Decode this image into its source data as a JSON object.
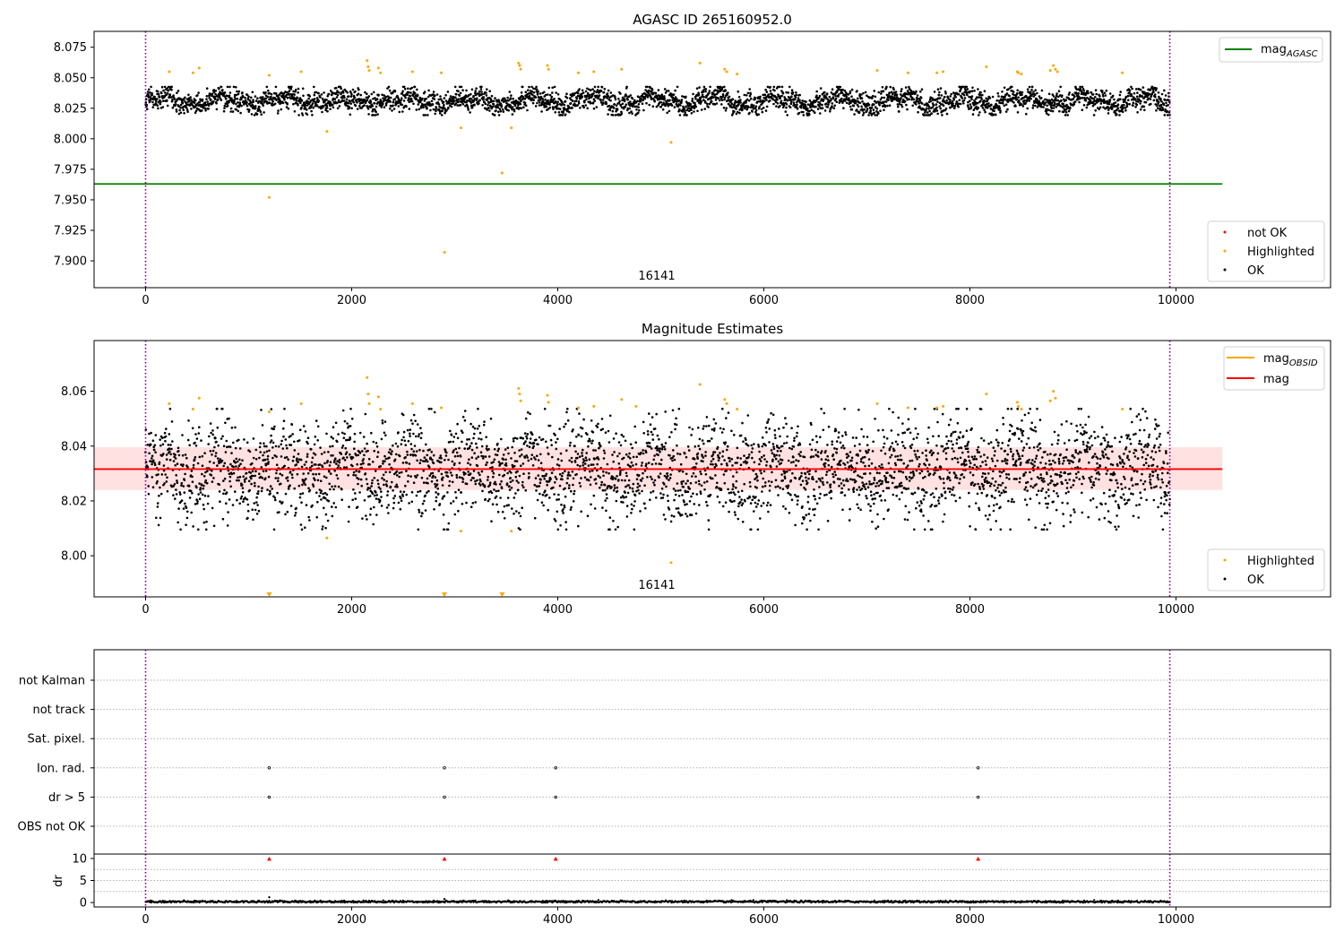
{
  "chart_data": [
    {
      "type": "scatter",
      "title": "AGASC ID 265160952.0",
      "xlim": [
        -500,
        11500
      ],
      "ylim": [
        7.878,
        8.088
      ],
      "x_ticks": [
        0,
        2000,
        4000,
        6000,
        8000,
        10000
      ],
      "y_ticks": [
        7.9,
        7.925,
        7.95,
        7.975,
        8.0,
        8.025,
        8.05,
        8.075
      ],
      "y_tick_labels": [
        "7.900",
        "7.925",
        "7.950",
        "7.975",
        "8.000",
        "8.025",
        "8.050",
        "8.075"
      ],
      "series": [
        {
          "name": "mag",
          "suffix": "AGASC",
          "type": "hline",
          "y": 7.963,
          "x_range": [
            -500,
            10450
          ],
          "color": "#008000"
        },
        {
          "name": "not OK",
          "type": "scatter",
          "color": "#ff0000",
          "points": []
        },
        {
          "name": "Highlighted",
          "type": "scatter",
          "color": "#ffa500",
          "points": [
            [
              230,
              8.055
            ],
            [
              460,
              8.054
            ],
            [
              520,
              8.058
            ],
            [
              1200,
              7.952
            ],
            [
              1200,
              8.052
            ],
            [
              1510,
              8.055
            ],
            [
              1760,
              8.006
            ],
            [
              2150,
              8.064
            ],
            [
              2160,
              8.059
            ],
            [
              2170,
              8.056
            ],
            [
              2260,
              8.058
            ],
            [
              2280,
              8.054
            ],
            [
              2590,
              8.055
            ],
            [
              2870,
              8.054
            ],
            [
              2900,
              7.907
            ],
            [
              3060,
              8.009
            ],
            [
              3460,
              7.972
            ],
            [
              3550,
              8.009
            ],
            [
              3620,
              8.062
            ],
            [
              3630,
              8.06
            ],
            [
              3640,
              8.057
            ],
            [
              3900,
              8.06
            ],
            [
              3910,
              8.057
            ],
            [
              4200,
              8.054
            ],
            [
              4350,
              8.055
            ],
            [
              4620,
              8.057
            ],
            [
              5100,
              7.997
            ],
            [
              5380,
              8.062
            ],
            [
              5620,
              8.057
            ],
            [
              5640,
              8.055
            ],
            [
              5740,
              8.053
            ],
            [
              7100,
              8.056
            ],
            [
              7400,
              8.054
            ],
            [
              7680,
              8.054
            ],
            [
              7740,
              8.055
            ],
            [
              8160,
              8.059
            ],
            [
              8460,
              8.055
            ],
            [
              8470,
              8.054
            ],
            [
              8500,
              8.053
            ],
            [
              8780,
              8.056
            ],
            [
              8810,
              8.06
            ],
            [
              8830,
              8.057
            ],
            [
              8850,
              8.055
            ],
            [
              9480,
              8.054
            ]
          ]
        },
        {
          "name": "OK",
          "type": "scatter",
          "color": "#000000",
          "x_range": [
            0,
            9940
          ],
          "y_center": 8.031,
          "y_spread": 0.021,
          "note_points": "dense band"
        }
      ],
      "vlines": [
        0,
        9940
      ],
      "annotation": "16141",
      "legend_upper": "upper right",
      "legend_lower": "lower right"
    },
    {
      "type": "scatter",
      "title": "Magnitude Estimates",
      "xlim": [
        -500,
        11500
      ],
      "ylim": [
        7.985,
        8.0785
      ],
      "x_ticks": [
        0,
        2000,
        4000,
        6000,
        8000,
        10000
      ],
      "y_ticks": [
        8.0,
        8.02,
        8.04,
        8.06
      ],
      "y_tick_labels": [
        "8.00",
        "8.02",
        "8.04",
        "8.06"
      ],
      "series": [
        {
          "name": "mag",
          "suffix": "OBSID",
          "type": "line",
          "color": "#ffa500"
        },
        {
          "name": "mag",
          "type": "hline",
          "y": 8.0316,
          "band": [
            8.024,
            8.0396
          ],
          "x_range": [
            -500,
            10450
          ],
          "color": "#ff0000"
        },
        {
          "name": "Highlighted",
          "type": "scatter",
          "color": "#ffa500",
          "points": [
            [
              230,
              8.0555
            ],
            [
              460,
              8.0535
            ],
            [
              520,
              8.0575
            ],
            [
              1200,
              8.0525
            ],
            [
              1510,
              8.0555
            ],
            [
              1760,
              8.0065
            ],
            [
              2150,
              8.065
            ],
            [
              2160,
              8.059
            ],
            [
              2170,
              8.0555
            ],
            [
              2260,
              8.058
            ],
            [
              2280,
              8.0535
            ],
            [
              2590,
              8.0555
            ],
            [
              2870,
              8.054
            ],
            [
              3060,
              8.009
            ],
            [
              3550,
              8.009
            ],
            [
              3620,
              8.061
            ],
            [
              3630,
              8.059
            ],
            [
              3640,
              8.0565
            ],
            [
              3900,
              8.0585
            ],
            [
              3910,
              8.056
            ],
            [
              4200,
              8.054
            ],
            [
              4350,
              8.0545
            ],
            [
              4620,
              8.057
            ],
            [
              4760,
              8.0545
            ],
            [
              5100,
              7.9975
            ],
            [
              5380,
              8.0625
            ],
            [
              5620,
              8.057
            ],
            [
              5640,
              8.0555
            ],
            [
              5740,
              8.0535
            ],
            [
              7100,
              8.0555
            ],
            [
              7400,
              8.054
            ],
            [
              7680,
              8.054
            ],
            [
              7740,
              8.0545
            ],
            [
              8160,
              8.059
            ],
            [
              8460,
              8.056
            ],
            [
              8470,
              8.0545
            ],
            [
              8500,
              8.0535
            ],
            [
              8780,
              8.0565
            ],
            [
              8810,
              8.06
            ],
            [
              8830,
              8.0575
            ],
            [
              9480,
              8.0535
            ]
          ]
        },
        {
          "name": "OK",
          "type": "scatter",
          "color": "#000000",
          "x_range": [
            0,
            9940
          ],
          "y_center": 8.0316,
          "y_spread": 0.04,
          "note_points": "dense band"
        }
      ],
      "clipped_markers": [
        1200,
        2900,
        3460
      ],
      "vlines": [
        0,
        9940
      ],
      "annotation": "16141",
      "legend_upper": "upper right",
      "legend_lower": "lower right"
    },
    {
      "type": "scatter",
      "title": "",
      "xlim": [
        -500,
        11500
      ],
      "categories": [
        "not Kalman",
        "not track",
        "Sat. pixel.",
        "Ion. rad.",
        "dr > 5",
        "OBS not OK"
      ],
      "flag_points": {
        "Ion. rad.": [
          1200,
          2900,
          3980,
          8080
        ],
        "dr > 5": [
          1200,
          2900,
          3980,
          8080
        ]
      },
      "vlines": [
        0,
        9940
      ]
    },
    {
      "type": "scatter",
      "title": "",
      "ylabel": "dr",
      "xlim": [
        -500,
        11500
      ],
      "ylim": [
        -1,
        11
      ],
      "x_ticks": [
        0,
        2000,
        4000,
        6000,
        8000,
        10000
      ],
      "y_ticks": [
        0,
        5,
        10
      ],
      "y_tick_labels": [
        "0",
        "5",
        "10"
      ],
      "series": [
        {
          "name": "dr",
          "type": "scatter",
          "color": "#000000",
          "x_range": [
            0,
            9940
          ],
          "y_center": 0.2,
          "y_spread": 0.25
        },
        {
          "name": "dr > 10 (clipped)",
          "type": "marker",
          "color": "#ff0000",
          "points": [
            [
              1200,
              10
            ],
            [
              2900,
              10
            ],
            [
              3980,
              10
            ],
            [
              8080,
              10
            ]
          ]
        }
      ],
      "vlines": [
        0,
        9940
      ]
    }
  ],
  "legend_labels": {
    "p1_line": "mag",
    "p1_line_sub": "AGASC",
    "p1_not_ok": "not OK",
    "p1_high": "Highlighted",
    "p1_ok": "OK",
    "p2_obsid": "mag",
    "p2_obsid_sub": "OBSID",
    "p2_mag": "mag",
    "p2_high": "Highlighted",
    "p2_ok": "OK"
  },
  "colors": {
    "ok": "#000000",
    "highlighted": "#ffa500",
    "not_ok": "#ff0000",
    "agasc_line": "#008000",
    "mag_line": "#ff0000",
    "band": "#ffdede",
    "vline": "#800080",
    "grid": "#b0b0b0"
  }
}
